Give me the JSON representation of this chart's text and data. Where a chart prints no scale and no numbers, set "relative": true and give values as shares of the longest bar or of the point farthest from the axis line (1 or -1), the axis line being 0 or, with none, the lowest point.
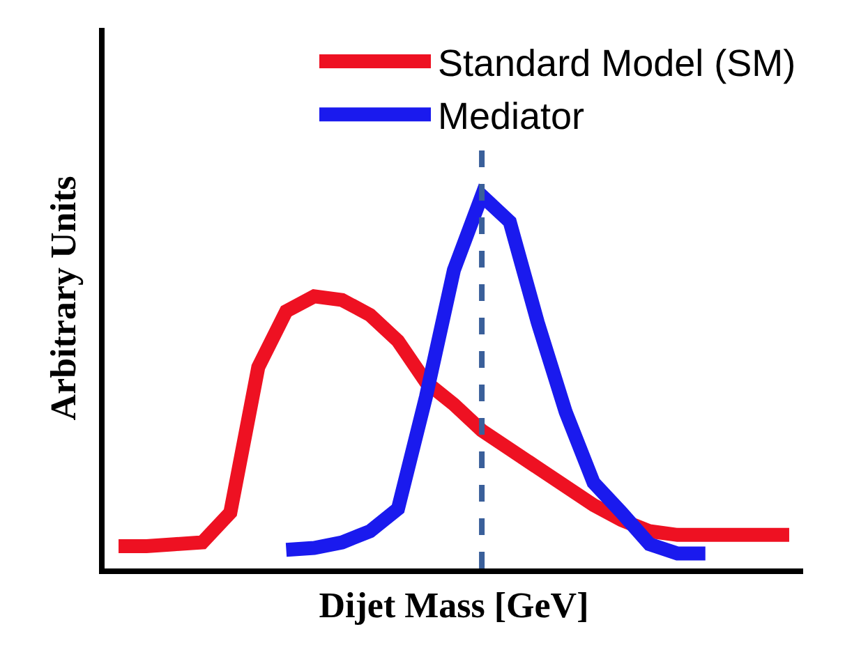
{
  "chart_data": {
    "type": "line",
    "relative": true,
    "xlabel": "Dijet Mass [GeV]",
    "ylabel": "Arbitrary Units",
    "categories": [
      null,
      null,
      null,
      null,
      null,
      null,
      null,
      null,
      null,
      null,
      null,
      null,
      null,
      null,
      null,
      null,
      null,
      null,
      null,
      null,
      null,
      null,
      null,
      null,
      null
    ],
    "series": [
      {
        "name": "Standard Model (SM)",
        "color": "#ee1122",
        "values": [
          0.06,
          0.06,
          0.065,
          0.07,
          0.15,
          0.54,
          0.69,
          0.73,
          0.72,
          0.68,
          0.61,
          0.5,
          0.44,
          0.37,
          0.32,
          0.27,
          0.22,
          0.17,
          0.13,
          0.1,
          0.09,
          0.09,
          0.09,
          0.09,
          0.09
        ]
      },
      {
        "name": "Mediator",
        "color": "#1a1aee",
        "values": [
          null,
          null,
          null,
          null,
          null,
          null,
          0.05,
          0.055,
          0.07,
          0.1,
          0.16,
          0.46,
          0.8,
          1.0,
          0.93,
          0.66,
          0.42,
          0.23,
          0.15,
          0.065,
          0.04,
          0.04,
          null,
          null,
          null
        ]
      }
    ],
    "legend": "top right",
    "marker": "none",
    "line_style": "solid",
    "tick_labels": false
  }
}
